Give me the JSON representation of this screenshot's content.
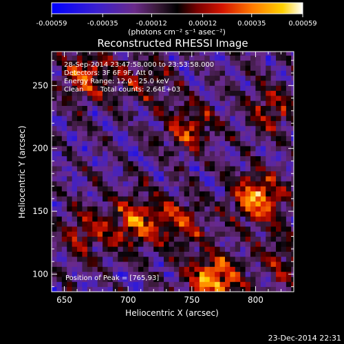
{
  "chart_data": {
    "type": "heatmap",
    "title": "Reconstructed RHESSI Image",
    "xlabel": "Heliocentric X (arcsec)",
    "ylabel": "Heliocentric Y (arcsec)",
    "xlim": [
      640,
      830
    ],
    "ylim": [
      86,
      277
    ],
    "x_ticks": [
      650,
      700,
      750,
      800
    ],
    "y_ticks": [
      100,
      150,
      200,
      250
    ],
    "colorbar": {
      "label": "(photons cm⁻² s⁻¹ asec⁻²)",
      "min": -0.00059,
      "max": 0.00059,
      "ticks": [
        -0.00059,
        -0.00035,
        -0.00012,
        0.00012,
        0.00035,
        0.00059
      ],
      "tick_labels": [
        "-0.00059",
        "-0.00035",
        "-0.00012",
        "0.00012",
        "0.00035",
        "0.00059"
      ]
    },
    "annotations": [
      "28-Sep-2014 23:47:58.000 to 23:53:58.000",
      "Detectors: 3F 6F 9F, Att 0",
      "Energy Range: 12.0 - 25.0 keV",
      "Clean",
      "Total counts: 2.64E+03",
      "Position of Peak = [765,93]"
    ],
    "peak": [
      765,
      93
    ],
    "hotspots": [
      {
        "x": 800,
        "y": 158,
        "value": 0.00055
      },
      {
        "x": 765,
        "y": 93,
        "value": 0.00059
      },
      {
        "x": 705,
        "y": 140,
        "value": 0.00045
      },
      {
        "x": 665,
        "y": 255,
        "value": 0.0004
      },
      {
        "x": 745,
        "y": 215,
        "value": 0.00035
      },
      {
        "x": 810,
        "y": 230,
        "value": 0.0003
      },
      {
        "x": 665,
        "y": 130,
        "value": 0.0003
      },
      {
        "x": 740,
        "y": 140,
        "value": 0.0003
      },
      {
        "x": 710,
        "y": 255,
        "value": 0.00025
      },
      {
        "x": 820,
        "y": 110,
        "value": 0.00025
      }
    ],
    "timestamp": "23-Dec-2014 22:31"
  }
}
